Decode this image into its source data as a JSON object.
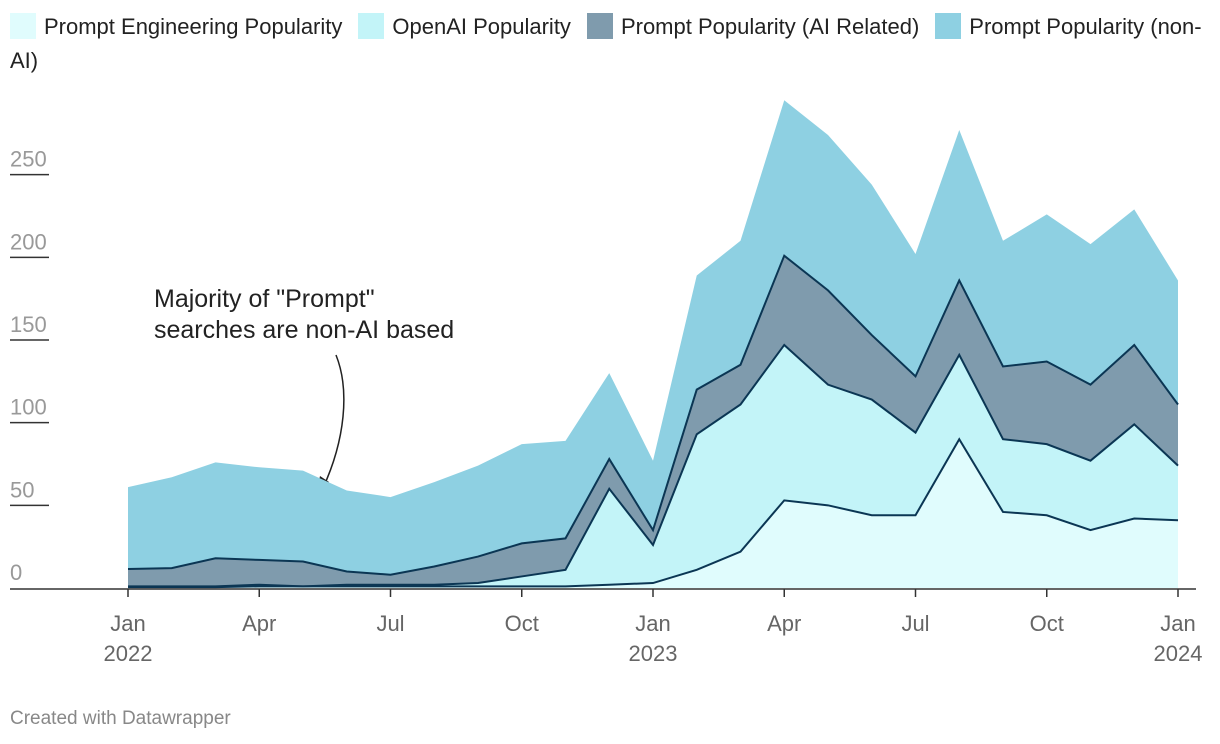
{
  "chart_data": {
    "type": "stacked-area",
    "annotation": "Majority of \"Prompt\"\nsearches are non-AI based",
    "credit": "Created with Datawrapper",
    "x": [
      "2022-01",
      "2022-02",
      "2022-03",
      "2022-04",
      "2022-05",
      "2022-06",
      "2022-07",
      "2022-08",
      "2022-09",
      "2022-10",
      "2022-11",
      "2022-12",
      "2023-01",
      "2023-02",
      "2023-03",
      "2023-04",
      "2023-05",
      "2023-06",
      "2023-07",
      "2023-08",
      "2023-09",
      "2023-10",
      "2023-11",
      "2023-12",
      "2024-01"
    ],
    "xlim": [
      "2022-01",
      "2024-01"
    ],
    "xticks": [
      {
        "value": "2022-01",
        "label": "Jan\n2022"
      },
      {
        "value": "2022-04",
        "label": "Apr"
      },
      {
        "value": "2022-07",
        "label": "Jul"
      },
      {
        "value": "2022-10",
        "label": "Oct"
      },
      {
        "value": "2023-01",
        "label": "Jan\n2023"
      },
      {
        "value": "2023-04",
        "label": "Apr"
      },
      {
        "value": "2023-07",
        "label": "Jul"
      },
      {
        "value": "2023-10",
        "label": "Oct"
      },
      {
        "value": "2024-01",
        "label": "Jan\n2024"
      }
    ],
    "ylim": [
      0,
      300
    ],
    "yticks": [
      0,
      50,
      100,
      150,
      200,
      250
    ],
    "series": [
      {
        "name": "Prompt Engineering Popularity",
        "color": "#e0fcfd",
        "values": [
          0.5,
          0.5,
          0.5,
          1,
          1,
          1,
          1,
          1,
          1,
          1,
          1,
          2,
          3,
          11,
          22,
          53,
          50,
          44,
          44,
          90,
          46,
          44,
          35,
          42,
          41
        ]
      },
      {
        "name": "OpenAI Popularity",
        "color": "#c3f4f8",
        "values": [
          0.5,
          0.5,
          0.5,
          1,
          0,
          1,
          1,
          1,
          2,
          6,
          10,
          58,
          23,
          82,
          89,
          94,
          73,
          70,
          50,
          51,
          44,
          43,
          42,
          57,
          33
        ]
      },
      {
        "name": "Prompt Popularity (AI Related)",
        "color": "#7f9bad",
        "values": [
          10.5,
          11,
          17,
          15,
          15,
          8,
          6,
          11,
          16,
          20,
          19,
          18,
          9,
          27,
          24,
          54,
          57,
          39,
          34,
          45,
          44,
          50,
          46,
          48,
          37
        ]
      },
      {
        "name": "Prompt Popularity (non-AI)",
        "color": "#8ed0e2",
        "values": [
          49.5,
          55,
          58,
          56,
          55,
          49,
          47,
          51,
          55,
          60,
          59,
          52,
          42,
          69,
          75,
          94,
          94,
          91,
          74,
          91,
          76,
          89,
          85,
          82,
          75
        ]
      }
    ],
    "line_color": "#0b3654"
  }
}
